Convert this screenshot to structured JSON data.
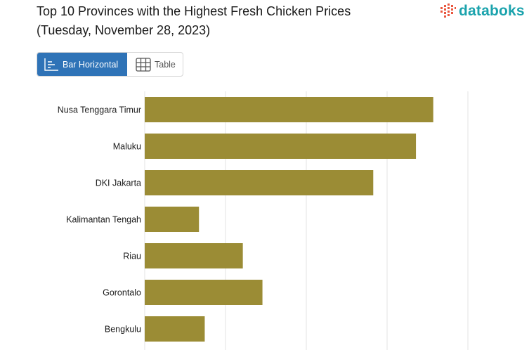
{
  "header": {
    "title_line1": "Top 10 Provinces with the Highest Fresh Chicken Prices",
    "title_line2": "(Tuesday, November 28, 2023)"
  },
  "logo": {
    "text": "databoks",
    "color": "#1ba3ad",
    "icon_color": "#e9573f"
  },
  "view_toggle": {
    "bar_label": "Bar Horizontal",
    "table_label": "Table",
    "active": "bar"
  },
  "chart_data": {
    "type": "bar",
    "orientation": "horizontal",
    "categories": [
      "Nusa Tenggara Timur",
      "Maluku",
      "DKI Jakarta",
      "Kalimantan Tengah",
      "Riau",
      "Gorontalo",
      "Bengkulu"
    ],
    "values": [
      48500,
      48350,
      47980,
      46470,
      46850,
      47020,
      46520
    ],
    "xlim": [
      46000,
      48800
    ],
    "bar_color": "#9b8c35",
    "grid": true
  }
}
